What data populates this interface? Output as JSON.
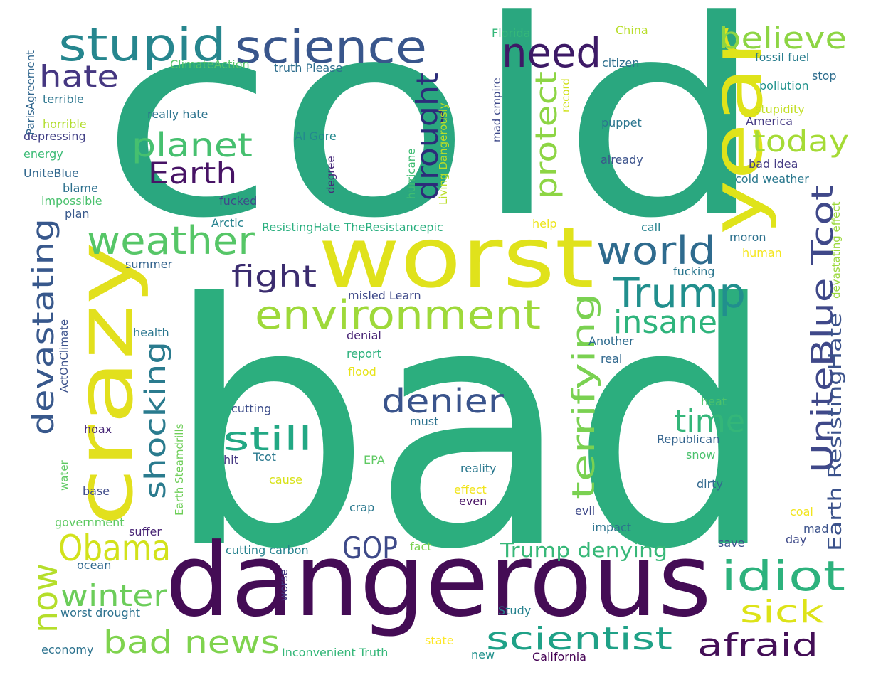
{
  "words": [
    {
      "text": "cold",
      "color": "#2aa77f"
    },
    {
      "text": "bad",
      "color": "#2cae7e"
    },
    {
      "text": "worst",
      "color": "#e0e21b"
    },
    {
      "text": "dangerous",
      "color": "#440c55"
    },
    {
      "text": "crazy",
      "color": "#e2e01d"
    },
    {
      "text": "year",
      "color": "#dfe31a"
    },
    {
      "text": "stupid",
      "color": "#26868e"
    },
    {
      "text": "science",
      "color": "#39568c"
    },
    {
      "text": "need",
      "color": "#3d1a66"
    },
    {
      "text": "believe",
      "color": "#8dd544"
    },
    {
      "text": "hate",
      "color": "#453781"
    },
    {
      "text": "planet",
      "color": "#46c06f"
    },
    {
      "text": "Earth",
      "color": "#471365"
    },
    {
      "text": "drought",
      "color": "#2c2c7a"
    },
    {
      "text": "protect",
      "color": "#8dd544"
    },
    {
      "text": "today",
      "color": "#a5db36"
    },
    {
      "text": "weather",
      "color": "#56c667"
    },
    {
      "text": "world",
      "color": "#2f6b8e"
    },
    {
      "text": "fight",
      "color": "#3b2c6f"
    },
    {
      "text": "Trump",
      "color": "#218f8d"
    },
    {
      "text": "environment",
      "color": "#9ed93a"
    },
    {
      "text": "insane",
      "color": "#2fb47c"
    },
    {
      "text": "devastating",
      "color": "#38588c"
    },
    {
      "text": "shocking",
      "color": "#2a7b8e"
    },
    {
      "text": "terrifying",
      "color": "#7ad151"
    },
    {
      "text": "UniteBlue Tcot",
      "color": "#3f4889"
    },
    {
      "text": "Earth ResistingHate",
      "color": "#3b528b"
    },
    {
      "text": "denier",
      "color": "#3a548c"
    },
    {
      "text": "still",
      "color": "#22a884"
    },
    {
      "text": "time",
      "color": "#34b679"
    },
    {
      "text": "Obama",
      "color": "#d2e21b"
    },
    {
      "text": "GOP",
      "color": "#3e4a89"
    },
    {
      "text": "idiot",
      "color": "#2db27d"
    },
    {
      "text": "now",
      "color": "#b5de2b"
    },
    {
      "text": "winter",
      "color": "#6ccd5a"
    },
    {
      "text": "Trump denying",
      "color": "#37b878"
    },
    {
      "text": "sick",
      "color": "#dde318"
    },
    {
      "text": "bad news",
      "color": "#7fd34e"
    },
    {
      "text": "scientist",
      "color": "#1fa187"
    },
    {
      "text": "afraid",
      "color": "#440f57"
    },
    {
      "text": "Florida",
      "color": "#35b779"
    },
    {
      "text": "China",
      "color": "#b8de29"
    },
    {
      "text": "ClimateAction",
      "color": "#55c568"
    },
    {
      "text": "truth Please",
      "color": "#2e6e8e"
    },
    {
      "text": "ParisAgreement",
      "color": "#31668e"
    },
    {
      "text": "terrible",
      "color": "#2b758e"
    },
    {
      "text": "horrible",
      "color": "#b2dd2d"
    },
    {
      "text": "depressing",
      "color": "#424086"
    },
    {
      "text": "energy",
      "color": "#3bbb75"
    },
    {
      "text": "UniteBlue",
      "color": "#31678e"
    },
    {
      "text": "blame",
      "color": "#2d708e"
    },
    {
      "text": "impossible",
      "color": "#4ac16d"
    },
    {
      "text": "plan",
      "color": "#38598c"
    },
    {
      "text": "really hate",
      "color": "#2c738e"
    },
    {
      "text": "Al Gore",
      "color": "#23898e"
    },
    {
      "text": "fucked",
      "color": "#3e4a89"
    },
    {
      "text": "Arctic",
      "color": "#26828e"
    },
    {
      "text": "ResistingHate TheResistancepic",
      "color": "#29af7f"
    },
    {
      "text": "Living Dangerously",
      "color": "#bade28"
    },
    {
      "text": "hurricane",
      "color": "#3fbc73"
    },
    {
      "text": "degree",
      "color": "#472a7a"
    },
    {
      "text": "mad empire",
      "color": "#3e4989"
    },
    {
      "text": "record",
      "color": "#d0e11c"
    },
    {
      "text": "citizen",
      "color": "#2e6f8e"
    },
    {
      "text": "fossil fuel",
      "color": "#287d8e"
    },
    {
      "text": "stop",
      "color": "#2e6d8e"
    },
    {
      "text": "pollution",
      "color": "#20928c"
    },
    {
      "text": "stupidity",
      "color": "#c2df23"
    },
    {
      "text": "America",
      "color": "#443983"
    },
    {
      "text": "puppet",
      "color": "#2b758e"
    },
    {
      "text": "already",
      "color": "#3b528b"
    },
    {
      "text": "bad idea",
      "color": "#443a83"
    },
    {
      "text": "cold weather",
      "color": "#2a788e"
    },
    {
      "text": "devastating effect",
      "color": "#9bd93c"
    },
    {
      "text": "help",
      "color": "#ece51b"
    },
    {
      "text": "call",
      "color": "#26828e"
    },
    {
      "text": "moron",
      "color": "#2d718e"
    },
    {
      "text": "human",
      "color": "#f4e61e"
    },
    {
      "text": "fucking",
      "color": "#2a768e"
    },
    {
      "text": "summer",
      "color": "#33638d"
    },
    {
      "text": "misled Learn",
      "color": "#3e4989"
    },
    {
      "text": "ActOnClimate",
      "color": "#3b518b"
    },
    {
      "text": "health",
      "color": "#2a768e"
    },
    {
      "text": "denial",
      "color": "#482475"
    },
    {
      "text": "report",
      "color": "#2db27d"
    },
    {
      "text": "flood",
      "color": "#e7e419"
    },
    {
      "text": "Another",
      "color": "#2f6c8e"
    },
    {
      "text": "real",
      "color": "#31688e"
    },
    {
      "text": "Earth Steamdrills",
      "color": "#6ece58"
    },
    {
      "text": "cutting",
      "color": "#3d4d8a"
    },
    {
      "text": "heat",
      "color": "#4ec36b"
    },
    {
      "text": "hoax",
      "color": "#482878"
    },
    {
      "text": "must",
      "color": "#2c728e"
    },
    {
      "text": "hit",
      "color": "#453882"
    },
    {
      "text": "Tcot",
      "color": "#2a788e"
    },
    {
      "text": "EPA",
      "color": "#5ec962"
    },
    {
      "text": "Republican",
      "color": "#33638d"
    },
    {
      "text": "snow",
      "color": "#4ac16d"
    },
    {
      "text": "water",
      "color": "#5ec962"
    },
    {
      "text": "cause",
      "color": "#d8e219"
    },
    {
      "text": "reality",
      "color": "#2a788e"
    },
    {
      "text": "base",
      "color": "#3e4a89"
    },
    {
      "text": "effect",
      "color": "#f1e51d"
    },
    {
      "text": "even",
      "color": "#471164"
    },
    {
      "text": "dirty",
      "color": "#31688e"
    },
    {
      "text": "government",
      "color": "#5ec962"
    },
    {
      "text": "crap",
      "color": "#2a788e"
    },
    {
      "text": "evil",
      "color": "#3e4989"
    },
    {
      "text": "coal",
      "color": "#f1e51d"
    },
    {
      "text": "suffer",
      "color": "#482475"
    },
    {
      "text": "impact",
      "color": "#2c738e"
    },
    {
      "text": "mad",
      "color": "#3b528b"
    },
    {
      "text": "cutting carbon",
      "color": "#26828e"
    },
    {
      "text": "fact",
      "color": "#7ad151"
    },
    {
      "text": "day",
      "color": "#3e4a89"
    },
    {
      "text": "save",
      "color": "#3b528b"
    },
    {
      "text": "ocean",
      "color": "#31688e"
    },
    {
      "text": "worse",
      "color": "#443983"
    },
    {
      "text": "worst drought",
      "color": "#2c718e"
    },
    {
      "text": "Study",
      "color": "#26828e"
    },
    {
      "text": "economy",
      "color": "#2c728e"
    },
    {
      "text": "Inconvenient Truth",
      "color": "#35b779"
    },
    {
      "text": "state",
      "color": "#fde725"
    },
    {
      "text": "new",
      "color": "#21918c"
    },
    {
      "text": "California",
      "color": "#440154"
    }
  ]
}
